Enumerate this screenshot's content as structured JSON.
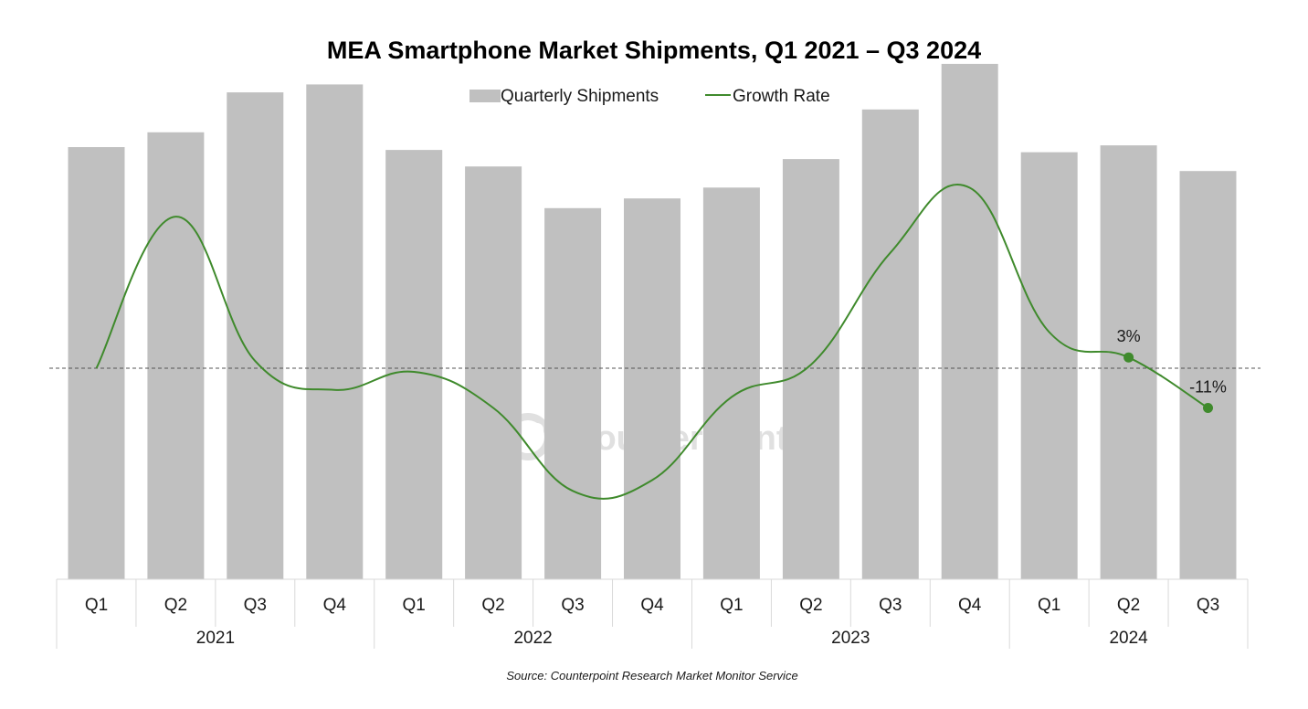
{
  "colors": {
    "bar": "#c0c0c0",
    "line": "#3f8a2c",
    "axis": "#d9d9d9",
    "zero_line": "#555555",
    "watermark": "#d6d6d6"
  },
  "chart_data": {
    "type": "bar",
    "title": "MEA Smartphone Market Shipments, Q1 2021 – Q3 2024",
    "legend": {
      "position": "top-center",
      "entries": [
        "Quarterly Shipments",
        "Growth Rate"
      ]
    },
    "categories": [
      "Q1",
      "Q2",
      "Q3",
      "Q4",
      "Q1",
      "Q2",
      "Q3",
      "Q4",
      "Q1",
      "Q2",
      "Q3",
      "Q4",
      "Q1",
      "Q2",
      "Q3"
    ],
    "years": [
      {
        "label": "2021",
        "count": 4
      },
      {
        "label": "2022",
        "count": 4
      },
      {
        "label": "2023",
        "count": 4
      },
      {
        "label": "2024",
        "count": 3
      }
    ],
    "series": [
      {
        "name": "Quarterly Shipments",
        "type": "bar",
        "values": [
          75.8,
          78.4,
          85.4,
          86.8,
          75.3,
          72.4,
          65.1,
          66.8,
          68.7,
          73.7,
          82.4,
          90.4,
          74.9,
          76.1,
          71.6
        ]
      },
      {
        "name": "Growth Rate",
        "type": "line",
        "unit": "%",
        "values": [
          0,
          42,
          2,
          -6,
          -1,
          -11,
          -34,
          -31,
          -8,
          1,
          32,
          50,
          10,
          3,
          -11
        ]
      }
    ],
    "bar_axis_range": [
      0,
      100
    ],
    "growth_axis_range": [
      -60,
      59
    ],
    "zero_line": {
      "value": 0,
      "style": "dashed"
    },
    "annotations": [
      {
        "index": 13,
        "label": "3%"
      },
      {
        "index": 14,
        "label": "-11%"
      }
    ],
    "grid": false,
    "source": "Source: Counterpoint Research Market Monitor Service",
    "watermark": "Counterpoint"
  }
}
